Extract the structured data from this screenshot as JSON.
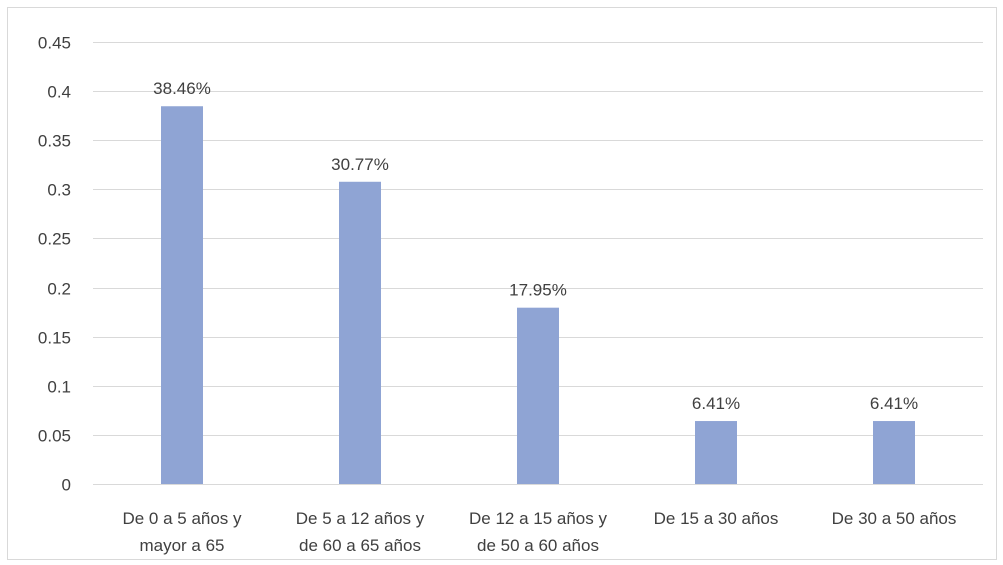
{
  "chart_data": {
    "type": "bar",
    "categories": [
      [
        "De 0 a 5 años y",
        "mayor a 65"
      ],
      [
        "De 5 a 12 años y",
        "de 60 a 65 años"
      ],
      [
        "De 12 a 15 años y",
        "de 50 a 60 años"
      ],
      [
        "De 15 a 30 años"
      ],
      [
        "De 30 a 50 años"
      ]
    ],
    "values": [
      0.3846,
      0.3077,
      0.1795,
      0.0641,
      0.0641
    ],
    "data_labels": [
      "38.46%",
      "30.77%",
      "17.95%",
      "6.41%",
      "6.41%"
    ],
    "ylim": [
      0,
      0.45
    ],
    "yticks": [
      0,
      0.05,
      0.1,
      0.15,
      0.2,
      0.25,
      0.3,
      0.35,
      0.4,
      0.45
    ],
    "ytick_labels": [
      "0",
      "0.05",
      "0.1",
      "0.15",
      "0.2",
      "0.25",
      "0.3",
      "0.35",
      "0.4",
      "0.45"
    ],
    "grid": true,
    "legend": "none",
    "title": "",
    "xlabel": "",
    "ylabel": "",
    "colors": {
      "bar": "#8fa4d4",
      "grid": "#d9d9d9",
      "text": "#404040"
    }
  }
}
